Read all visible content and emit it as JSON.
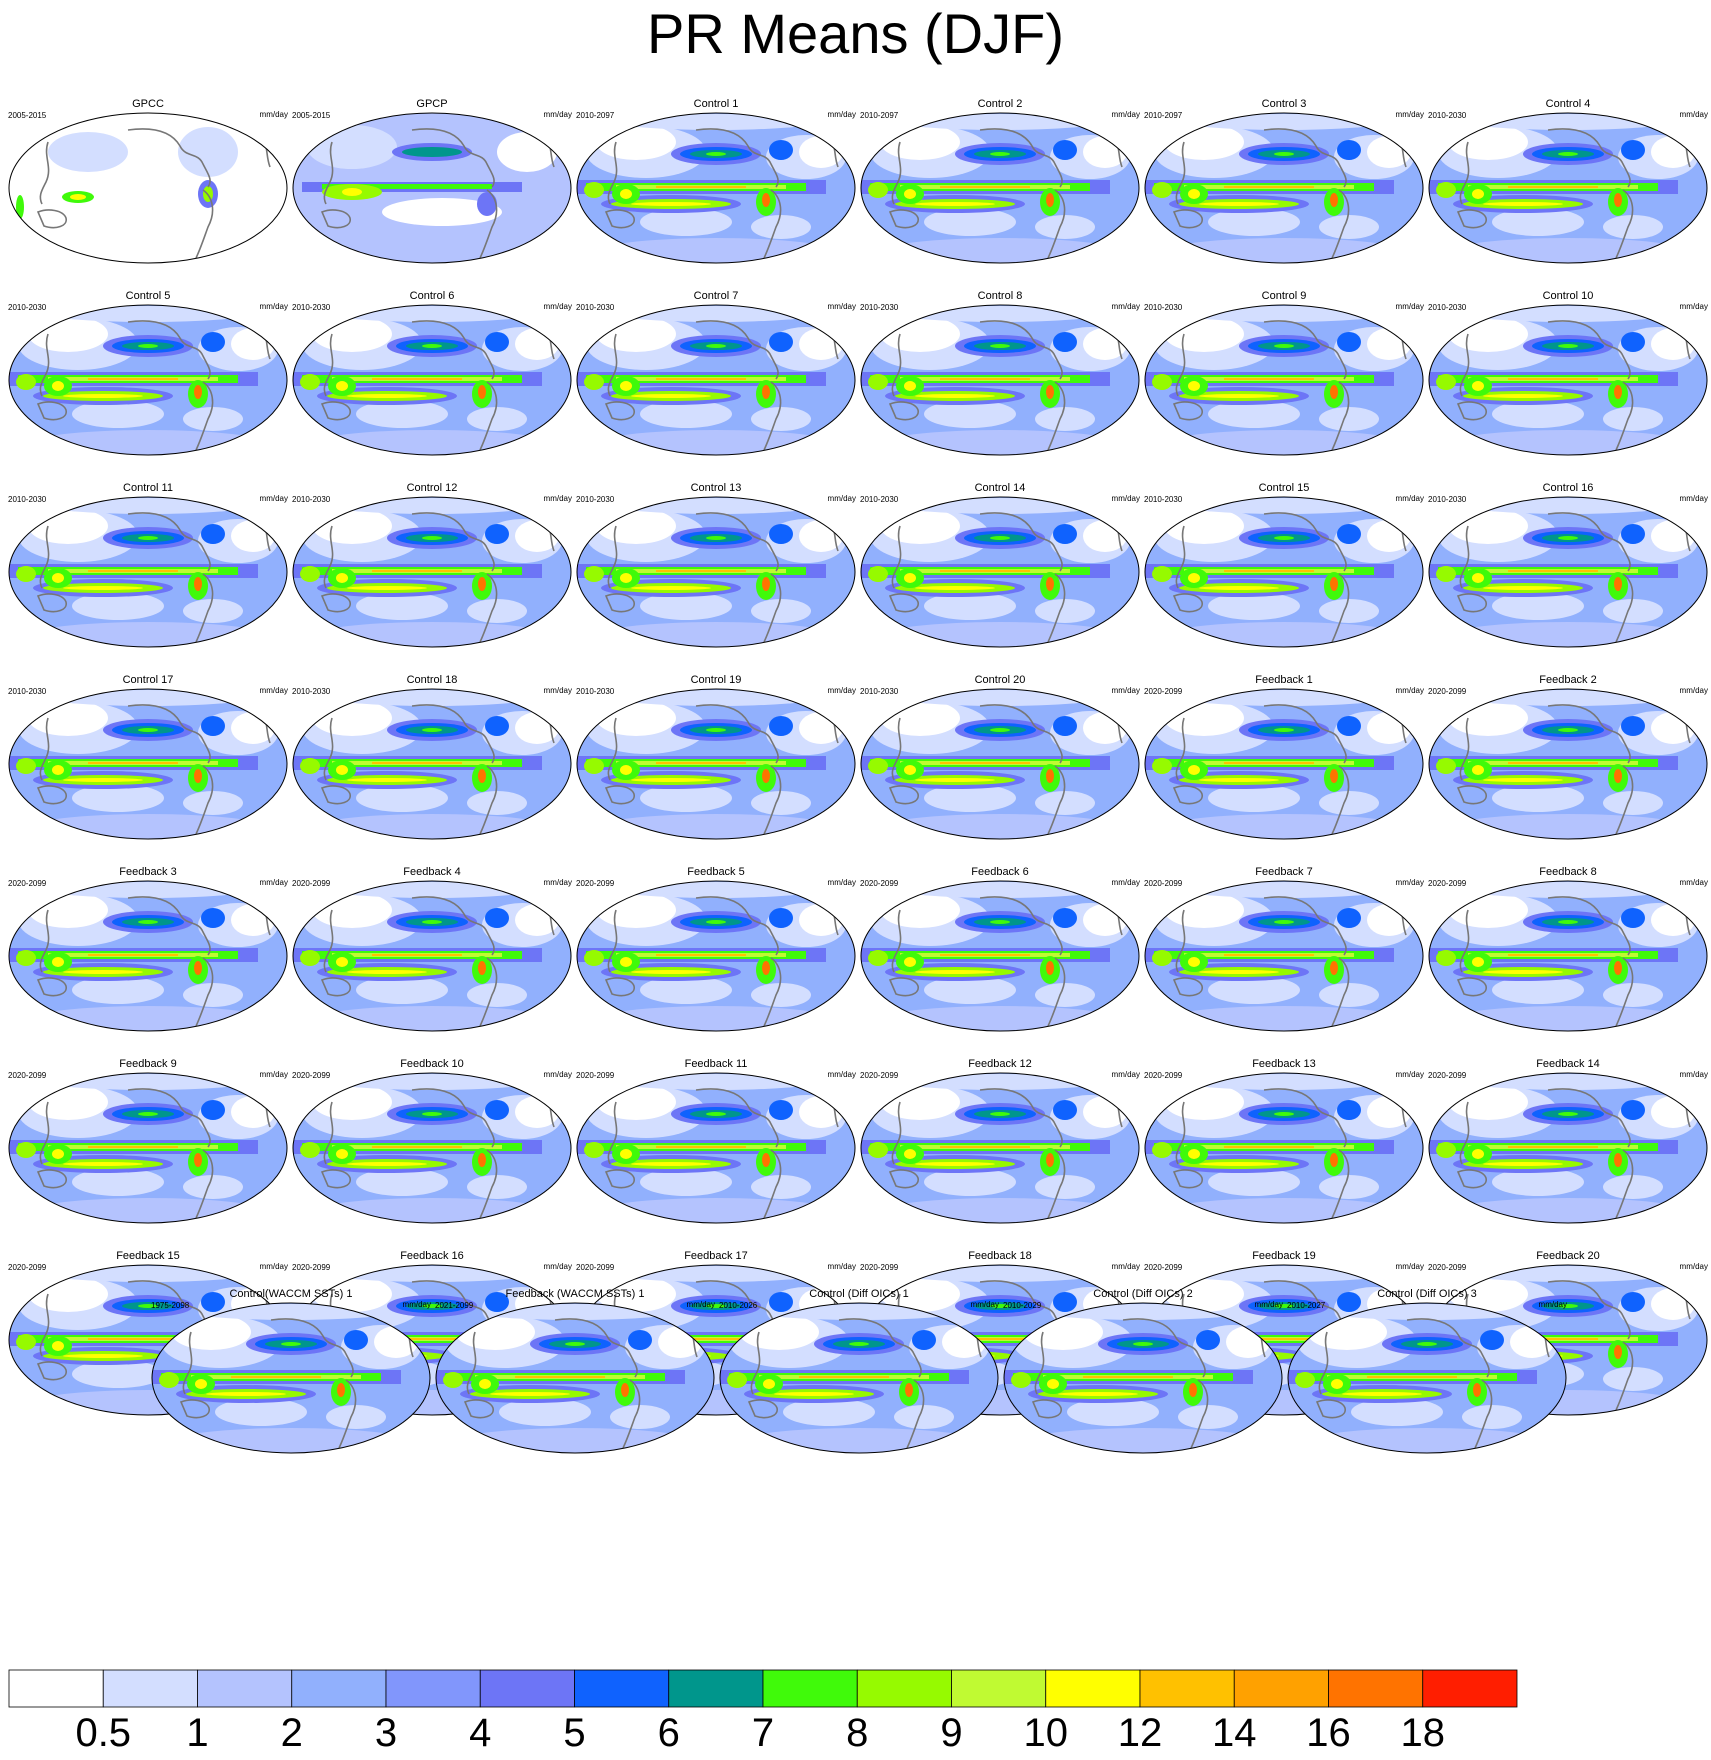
{
  "title": "PR Means (DJF)",
  "unit": "mm/day",
  "panels": [
    {
      "name": "GPCC",
      "period": "2005-2015",
      "kind": "gpcc"
    },
    {
      "name": "GPCP",
      "period": "2005-2015",
      "kind": "gpcp"
    },
    {
      "name": "Control 1",
      "period": "2010-2097",
      "kind": "model"
    },
    {
      "name": "Control 2",
      "period": "2010-2097",
      "kind": "model"
    },
    {
      "name": "Control 3",
      "period": "2010-2097",
      "kind": "model"
    },
    {
      "name": "Control 4",
      "period": "2010-2030",
      "kind": "model"
    },
    {
      "name": "Control 5",
      "period": "2010-2030",
      "kind": "model"
    },
    {
      "name": "Control 6",
      "period": "2010-2030",
      "kind": "model"
    },
    {
      "name": "Control 7",
      "period": "2010-2030",
      "kind": "model"
    },
    {
      "name": "Control 8",
      "period": "2010-2030",
      "kind": "model"
    },
    {
      "name": "Control 9",
      "period": "2010-2030",
      "kind": "model"
    },
    {
      "name": "Control 10",
      "period": "2010-2030",
      "kind": "model"
    },
    {
      "name": "Control 11",
      "period": "2010-2030",
      "kind": "model"
    },
    {
      "name": "Control 12",
      "period": "2010-2030",
      "kind": "model"
    },
    {
      "name": "Control 13",
      "period": "2010-2030",
      "kind": "model"
    },
    {
      "name": "Control 14",
      "period": "2010-2030",
      "kind": "model"
    },
    {
      "name": "Control 15",
      "period": "2010-2030",
      "kind": "model"
    },
    {
      "name": "Control 16",
      "period": "2010-2030",
      "kind": "model"
    },
    {
      "name": "Control 17",
      "period": "2010-2030",
      "kind": "model"
    },
    {
      "name": "Control 18",
      "period": "2010-2030",
      "kind": "model"
    },
    {
      "name": "Control 19",
      "period": "2010-2030",
      "kind": "model"
    },
    {
      "name": "Control 20",
      "period": "2010-2030",
      "kind": "model"
    },
    {
      "name": "Feedback 1",
      "period": "2020-2099",
      "kind": "model"
    },
    {
      "name": "Feedback 2",
      "period": "2020-2099",
      "kind": "model"
    },
    {
      "name": "Feedback 3",
      "period": "2020-2099",
      "kind": "model"
    },
    {
      "name": "Feedback 4",
      "period": "2020-2099",
      "kind": "model"
    },
    {
      "name": "Feedback 5",
      "period": "2020-2099",
      "kind": "model"
    },
    {
      "name": "Feedback 6",
      "period": "2020-2099",
      "kind": "model"
    },
    {
      "name": "Feedback 7",
      "period": "2020-2099",
      "kind": "model"
    },
    {
      "name": "Feedback 8",
      "period": "2020-2099",
      "kind": "model"
    },
    {
      "name": "Feedback 9",
      "period": "2020-2099",
      "kind": "model"
    },
    {
      "name": "Feedback 10",
      "period": "2020-2099",
      "kind": "model"
    },
    {
      "name": "Feedback 11",
      "period": "2020-2099",
      "kind": "model"
    },
    {
      "name": "Feedback 12",
      "period": "2020-2099",
      "kind": "model"
    },
    {
      "name": "Feedback 13",
      "period": "2020-2099",
      "kind": "model"
    },
    {
      "name": "Feedback 14",
      "period": "2020-2099",
      "kind": "model"
    },
    {
      "name": "Feedback 15",
      "period": "2020-2099",
      "kind": "model"
    },
    {
      "name": "Feedback 16",
      "period": "2020-2099",
      "kind": "model"
    },
    {
      "name": "Feedback 17",
      "period": "2020-2099",
      "kind": "model"
    },
    {
      "name": "Feedback 18",
      "period": "2020-2099",
      "kind": "model"
    },
    {
      "name": "Feedback 19",
      "period": "2020-2099",
      "kind": "model"
    },
    {
      "name": "Feedback 20",
      "period": "2020-2099",
      "kind": "model"
    },
    {
      "name": "Control(WACCM SSTs) 1",
      "period": "1975-2098",
      "kind": "model"
    },
    {
      "name": "Feedback (WACCM SSTs) 1",
      "period": "2021-2099",
      "kind": "model"
    },
    {
      "name": "Control (Diff OICs) 1",
      "period": "2010-2026",
      "kind": "model"
    },
    {
      "name": "Control (Diff OICs) 2",
      "period": "2010-2029",
      "kind": "model"
    },
    {
      "name": "Control (Diff OICs) 3",
      "period": "2010-2027",
      "kind": "model"
    }
  ],
  "colorbar": {
    "labels": [
      "0.5",
      "1",
      "2",
      "3",
      "4",
      "5",
      "6",
      "7",
      "8",
      "9",
      "10",
      "12",
      "14",
      "16",
      "18"
    ],
    "colors": [
      "#ffffff",
      "#d3deff",
      "#b4c3fe",
      "#91b0fd",
      "#8196fc",
      "#6d75f6",
      "#0f62fe",
      "#00968c",
      "#40fa0a",
      "#96fa00",
      "#c0fa32",
      "#ffff00",
      "#ffc100",
      "#ffa100",
      "#ff7300",
      "#ff1e00"
    ]
  }
}
